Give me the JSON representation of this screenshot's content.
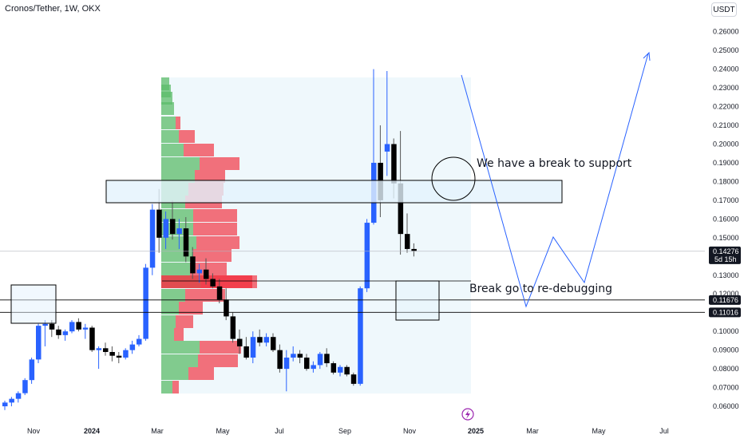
{
  "header": {
    "symbol": "Cronos/Tether, 1W, OKX",
    "currency": "USDT"
  },
  "annotations": {
    "support_break": "We have a break to support",
    "debugging": "Break go to re-debugging"
  },
  "icons": {
    "logo": "lightning-bolt-icon"
  },
  "colors": {
    "up": "#2962ff",
    "down": "#000000",
    "vp_green": "#5cbc6a",
    "vp_red": "#f23645",
    "zone_fill": "#e3f2fd",
    "projection": "#2962ff"
  },
  "chart_data": {
    "type": "candlestick",
    "title": "Cronos/Tether, 1W, OKX",
    "ylabel": "USDT",
    "ylim": [
      0.055,
      0.265
    ],
    "y_ticks": [
      0.06,
      0.07,
      0.08,
      0.09,
      0.1,
      0.11,
      0.12,
      0.13,
      0.14,
      0.15,
      0.16,
      0.17,
      0.18,
      0.19,
      0.2,
      0.21,
      0.22,
      0.23,
      0.24,
      0.25,
      0.26
    ],
    "x_labels": [
      "Nov",
      "2024",
      "Mar",
      "May",
      "Jul",
      "Sep",
      "Nov",
      "2025",
      "Mar",
      "May",
      "Jul"
    ],
    "price_labels": [
      {
        "value": 0.14276,
        "text": "0.14276",
        "sub": "5d 15h"
      },
      {
        "value": 0.11676,
        "text": "0.11676"
      },
      {
        "value": 0.11016,
        "text": "0.11016"
      }
    ],
    "candles": [
      {
        "o": 0.06,
        "h": 0.063,
        "l": 0.058,
        "c": 0.062
      },
      {
        "o": 0.062,
        "h": 0.065,
        "l": 0.06,
        "c": 0.064
      },
      {
        "o": 0.064,
        "h": 0.068,
        "l": 0.062,
        "c": 0.067
      },
      {
        "o": 0.067,
        "h": 0.075,
        "l": 0.066,
        "c": 0.074
      },
      {
        "o": 0.074,
        "h": 0.086,
        "l": 0.072,
        "c": 0.085
      },
      {
        "o": 0.085,
        "h": 0.104,
        "l": 0.083,
        "c": 0.103
      },
      {
        "o": 0.103,
        "h": 0.106,
        "l": 0.092,
        "c": 0.104
      },
      {
        "o": 0.104,
        "h": 0.106,
        "l": 0.097,
        "c": 0.101
      },
      {
        "o": 0.101,
        "h": 0.103,
        "l": 0.096,
        "c": 0.098
      },
      {
        "o": 0.098,
        "h": 0.101,
        "l": 0.095,
        "c": 0.1
      },
      {
        "o": 0.1,
        "h": 0.106,
        "l": 0.099,
        "c": 0.105
      },
      {
        "o": 0.105,
        "h": 0.107,
        "l": 0.1,
        "c": 0.101
      },
      {
        "o": 0.101,
        "h": 0.104,
        "l": 0.096,
        "c": 0.102
      },
      {
        "o": 0.102,
        "h": 0.103,
        "l": 0.089,
        "c": 0.09
      },
      {
        "o": 0.09,
        "h": 0.092,
        "l": 0.08,
        "c": 0.091
      },
      {
        "o": 0.091,
        "h": 0.094,
        "l": 0.087,
        "c": 0.089
      },
      {
        "o": 0.089,
        "h": 0.092,
        "l": 0.084,
        "c": 0.087
      },
      {
        "o": 0.087,
        "h": 0.089,
        "l": 0.083,
        "c": 0.086
      },
      {
        "o": 0.086,
        "h": 0.091,
        "l": 0.085,
        "c": 0.09
      },
      {
        "o": 0.09,
        "h": 0.095,
        "l": 0.088,
        "c": 0.093
      },
      {
        "o": 0.093,
        "h": 0.098,
        "l": 0.092,
        "c": 0.096
      },
      {
        "o": 0.096,
        "h": 0.136,
        "l": 0.095,
        "c": 0.134
      },
      {
        "o": 0.134,
        "h": 0.168,
        "l": 0.13,
        "c": 0.165
      },
      {
        "o": 0.165,
        "h": 0.176,
        "l": 0.142,
        "c": 0.15
      },
      {
        "o": 0.15,
        "h": 0.164,
        "l": 0.144,
        "c": 0.16
      },
      {
        "o": 0.16,
        "h": 0.17,
        "l": 0.149,
        "c": 0.152
      },
      {
        "o": 0.152,
        "h": 0.16,
        "l": 0.144,
        "c": 0.155
      },
      {
        "o": 0.155,
        "h": 0.161,
        "l": 0.137,
        "c": 0.14
      },
      {
        "o": 0.14,
        "h": 0.145,
        "l": 0.128,
        "c": 0.131
      },
      {
        "o": 0.131,
        "h": 0.136,
        "l": 0.126,
        "c": 0.133
      },
      {
        "o": 0.133,
        "h": 0.139,
        "l": 0.125,
        "c": 0.128
      },
      {
        "o": 0.128,
        "h": 0.131,
        "l": 0.123,
        "c": 0.124
      },
      {
        "o": 0.124,
        "h": 0.128,
        "l": 0.115,
        "c": 0.117
      },
      {
        "o": 0.117,
        "h": 0.123,
        "l": 0.106,
        "c": 0.108
      },
      {
        "o": 0.108,
        "h": 0.11,
        "l": 0.094,
        "c": 0.096
      },
      {
        "o": 0.096,
        "h": 0.101,
        "l": 0.088,
        "c": 0.092
      },
      {
        "o": 0.092,
        "h": 0.097,
        "l": 0.085,
        "c": 0.086
      },
      {
        "o": 0.086,
        "h": 0.1,
        "l": 0.083,
        "c": 0.097
      },
      {
        "o": 0.097,
        "h": 0.101,
        "l": 0.092,
        "c": 0.094
      },
      {
        "o": 0.094,
        "h": 0.099,
        "l": 0.092,
        "c": 0.097
      },
      {
        "o": 0.097,
        "h": 0.099,
        "l": 0.089,
        "c": 0.09
      },
      {
        "o": 0.09,
        "h": 0.093,
        "l": 0.078,
        "c": 0.08
      },
      {
        "o": 0.08,
        "h": 0.09,
        "l": 0.068,
        "c": 0.086
      },
      {
        "o": 0.086,
        "h": 0.092,
        "l": 0.084,
        "c": 0.088
      },
      {
        "o": 0.088,
        "h": 0.09,
        "l": 0.083,
        "c": 0.086
      },
      {
        "o": 0.086,
        "h": 0.088,
        "l": 0.079,
        "c": 0.08
      },
      {
        "o": 0.08,
        "h": 0.084,
        "l": 0.078,
        "c": 0.082
      },
      {
        "o": 0.082,
        "h": 0.089,
        "l": 0.08,
        "c": 0.088
      },
      {
        "o": 0.088,
        "h": 0.091,
        "l": 0.081,
        "c": 0.083
      },
      {
        "o": 0.083,
        "h": 0.084,
        "l": 0.077,
        "c": 0.078
      },
      {
        "o": 0.078,
        "h": 0.082,
        "l": 0.076,
        "c": 0.081
      },
      {
        "o": 0.081,
        "h": 0.082,
        "l": 0.076,
        "c": 0.077
      },
      {
        "o": 0.077,
        "h": 0.078,
        "l": 0.071,
        "c": 0.072
      },
      {
        "o": 0.072,
        "h": 0.124,
        "l": 0.071,
        "c": 0.123
      },
      {
        "o": 0.123,
        "h": 0.16,
        "l": 0.121,
        "c": 0.158
      },
      {
        "o": 0.158,
        "h": 0.24,
        "l": 0.157,
        "c": 0.19
      },
      {
        "o": 0.19,
        "h": 0.21,
        "l": 0.161,
        "c": 0.17
      },
      {
        "o": 0.196,
        "h": 0.239,
        "l": 0.183,
        "c": 0.2
      },
      {
        "o": 0.2,
        "h": 0.203,
        "l": 0.171,
        "c": 0.179
      },
      {
        "o": 0.179,
        "h": 0.207,
        "l": 0.141,
        "c": 0.152
      },
      {
        "o": 0.152,
        "h": 0.163,
        "l": 0.142,
        "c": 0.144
      },
      {
        "o": 0.144,
        "h": 0.147,
        "l": 0.14,
        "c": 0.143
      }
    ]
  }
}
